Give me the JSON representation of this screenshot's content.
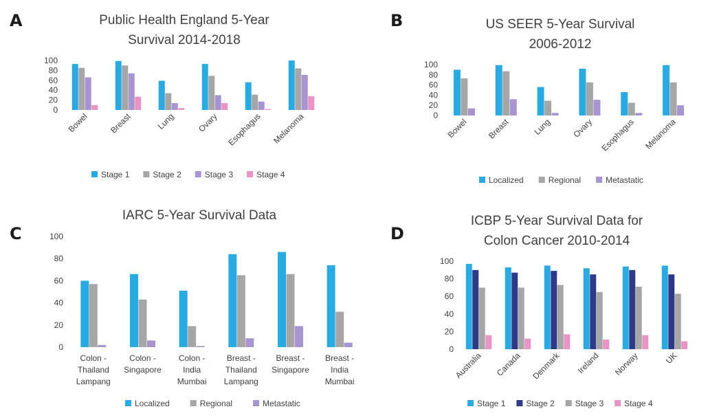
{
  "chart_data": [
    {
      "panel": "A",
      "type": "bar",
      "title": [
        "Public Health England 5-Year",
        "Survival 2014-2018"
      ],
      "xlabel": "",
      "ylabel": "",
      "ylim": [
        0,
        100
      ],
      "yticks": [
        0,
        20,
        40,
        60,
        80,
        100
      ],
      "grid": false,
      "legend": "bottom",
      "category_label_style": "rotated",
      "categories": [
        "Bowel",
        "Breast",
        "Lung",
        "Ovary",
        "Esophagus",
        "Melanoma"
      ],
      "series": [
        {
          "name": "Stage 1",
          "color": "#29ABE2",
          "values": [
            93,
            99,
            59,
            93,
            56,
            100
          ]
        },
        {
          "name": "Stage 2",
          "color": "#A6A6A6",
          "values": [
            85,
            90,
            34,
            69,
            31,
            84
          ]
        },
        {
          "name": "Stage 3",
          "color": "#A795D1",
          "values": [
            66,
            74,
            14,
            30,
            17,
            71
          ]
        },
        {
          "name": "Stage 4",
          "color": "#E895C5",
          "values": [
            10,
            27,
            4,
            14,
            2,
            28
          ]
        }
      ]
    },
    {
      "panel": "B",
      "type": "bar",
      "title": [
        "US SEER 5-Year Survival",
        "2006-2012"
      ],
      "xlabel": "",
      "ylabel": "",
      "ylim": [
        0,
        100
      ],
      "yticks": [
        0,
        20,
        40,
        60,
        80,
        100
      ],
      "grid": false,
      "legend": "bottom",
      "category_label_style": "rotated",
      "categories": [
        "Bowel",
        "Breast",
        "Lung",
        "Ovary",
        "Esophagus",
        "Melanoma"
      ],
      "series": [
        {
          "name": "Localized",
          "color": "#29ABE2",
          "values": [
            90,
            99,
            56,
            92,
            46,
            99
          ]
        },
        {
          "name": "Regional",
          "color": "#A6A6A6",
          "values": [
            73,
            87,
            29,
            65,
            25,
            65
          ]
        },
        {
          "name": "Metastatic",
          "color": "#A795D1",
          "values": [
            14,
            32,
            5,
            31,
            5,
            20
          ]
        }
      ]
    },
    {
      "panel": "C",
      "type": "bar",
      "title": [
        "IARC 5-Year Survival Data"
      ],
      "xlabel": "",
      "ylabel": "",
      "ylim": [
        0,
        100
      ],
      "yticks": [
        0,
        20,
        40,
        60,
        80,
        100
      ],
      "grid": false,
      "legend": "bottom",
      "category_label_style": "multiline",
      "categories": [
        "Colon - Thailand Lampang",
        "Colon - Singapore",
        "Colon - India Mumbai",
        "Breast - Thailand Lampang",
        "Breast - Singapore",
        "Breast - India Mumbai"
      ],
      "category_lines": [
        [
          "Colon -",
          "Thailand",
          "Lampang"
        ],
        [
          "Colon -",
          "Singapore"
        ],
        [
          "Colon -",
          "India",
          "Mumbai"
        ],
        [
          "Breast -",
          "Thailand",
          "Lampang"
        ],
        [
          "Breast -",
          "Singapore"
        ],
        [
          "Breast -",
          "India",
          "Mumbai"
        ]
      ],
      "series": [
        {
          "name": "Localized",
          "color": "#29ABE2",
          "values": [
            60,
            66,
            51,
            84,
            86,
            74
          ]
        },
        {
          "name": "Regional",
          "color": "#A6A6A6",
          "values": [
            57,
            43,
            19,
            65,
            66,
            32
          ]
        },
        {
          "name": "Metastatic",
          "color": "#A795D1",
          "values": [
            2,
            6,
            1,
            8,
            19,
            4
          ]
        }
      ]
    },
    {
      "panel": "D",
      "type": "bar",
      "title": [
        "ICBP 5-Year Survival Data for",
        "Colon Cancer 2010-2014"
      ],
      "xlabel": "",
      "ylabel": "",
      "ylim": [
        0,
        100
      ],
      "yticks": [
        0,
        20,
        40,
        60,
        80,
        100
      ],
      "grid": false,
      "legend": "bottom",
      "category_label_style": "rotated",
      "categories": [
        "Australia",
        "Canada",
        "Denmark",
        "Ireland",
        "Norway",
        "UK"
      ],
      "series": [
        {
          "name": "Stage 1",
          "color": "#29ABE2",
          "values": [
            97,
            93,
            95,
            92,
            94,
            95
          ]
        },
        {
          "name": "Stage 2",
          "color": "#2E3A87",
          "values": [
            90,
            87,
            89,
            85,
            90,
            85
          ]
        },
        {
          "name": "Stage 3",
          "color": "#A6A6A6",
          "values": [
            70,
            70,
            73,
            65,
            71,
            63
          ]
        },
        {
          "name": "Stage 4",
          "color": "#E895C5",
          "values": [
            16,
            12,
            17,
            11,
            16,
            9
          ]
        }
      ]
    }
  ]
}
